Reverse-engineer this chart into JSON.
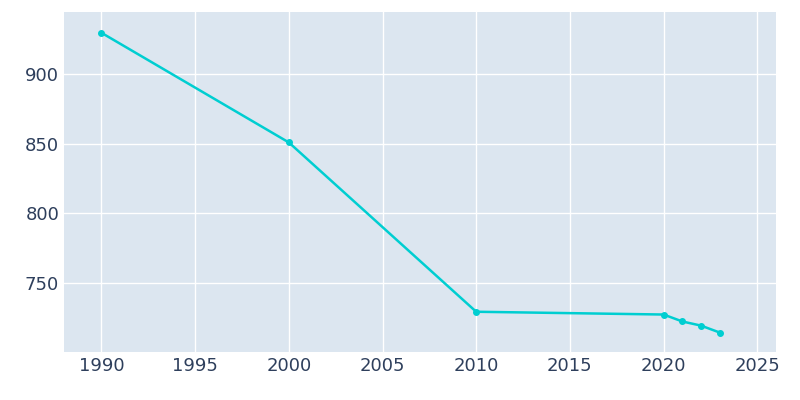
{
  "years": [
    1990,
    2000,
    2010,
    2020,
    2021,
    2022,
    2023
  ],
  "population": [
    930,
    851,
    729,
    727,
    722,
    719,
    714
  ],
  "line_color": "#00CED1",
  "marker": "o",
  "marker_size": 4,
  "background_color": "#dce6f0",
  "fig_background_color": "#ffffff",
  "grid_color": "#ffffff",
  "line_width": 1.8,
  "xlim": [
    1988,
    2026
  ],
  "ylim": [
    700,
    945
  ],
  "yticks": [
    750,
    800,
    850,
    900
  ],
  "xticks": [
    1990,
    1995,
    2000,
    2005,
    2010,
    2015,
    2020,
    2025
  ],
  "tick_color": "#2e3f5c",
  "tick_fontsize": 13
}
